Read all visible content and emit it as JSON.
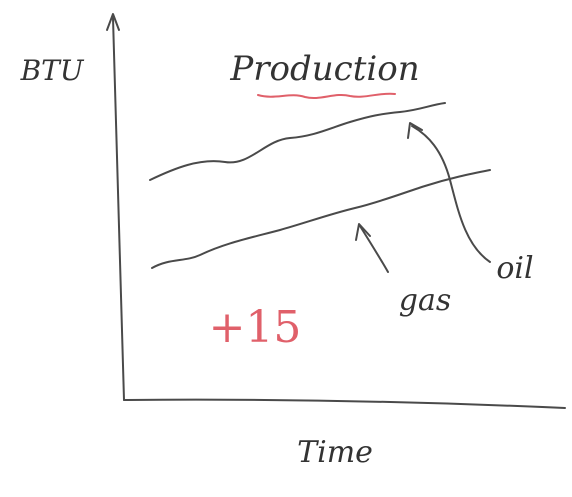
{
  "title": "Production",
  "y_axis_label": "BTU",
  "x_axis_label": "Time",
  "labels": {
    "gas": "gas",
    "oil": "oil"
  },
  "annotation": "+15"
}
